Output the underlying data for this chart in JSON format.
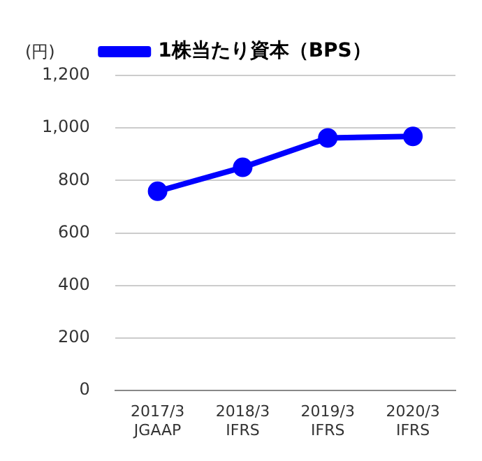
{
  "chart_data": {
    "type": "line",
    "ylabel": "(円)",
    "categories": [
      "2017/3\nJGAAP",
      "2018/3\nIFRS",
      "2019/3\nIFRS",
      "2020/3\nIFRS"
    ],
    "series": [
      {
        "name": "1株当たり資本（BPS）",
        "color": "#0000ff",
        "values": [
          759,
          850,
          962,
          968
        ]
      }
    ],
    "ylim": [
      0,
      1200
    ],
    "yticks": [
      0,
      {
        "value": 200,
        "label": "200"
      },
      {
        "value": 400,
        "label": "400"
      },
      {
        "value": 600,
        "label": "600"
      },
      {
        "value": 800,
        "label": "800"
      },
      {
        "value": 1000,
        "label": "1,000"
      },
      {
        "value": 1200,
        "label": "1,200"
      }
    ],
    "grid": "y",
    "legend": "top",
    "marker": "circle",
    "line_style": "solid"
  }
}
